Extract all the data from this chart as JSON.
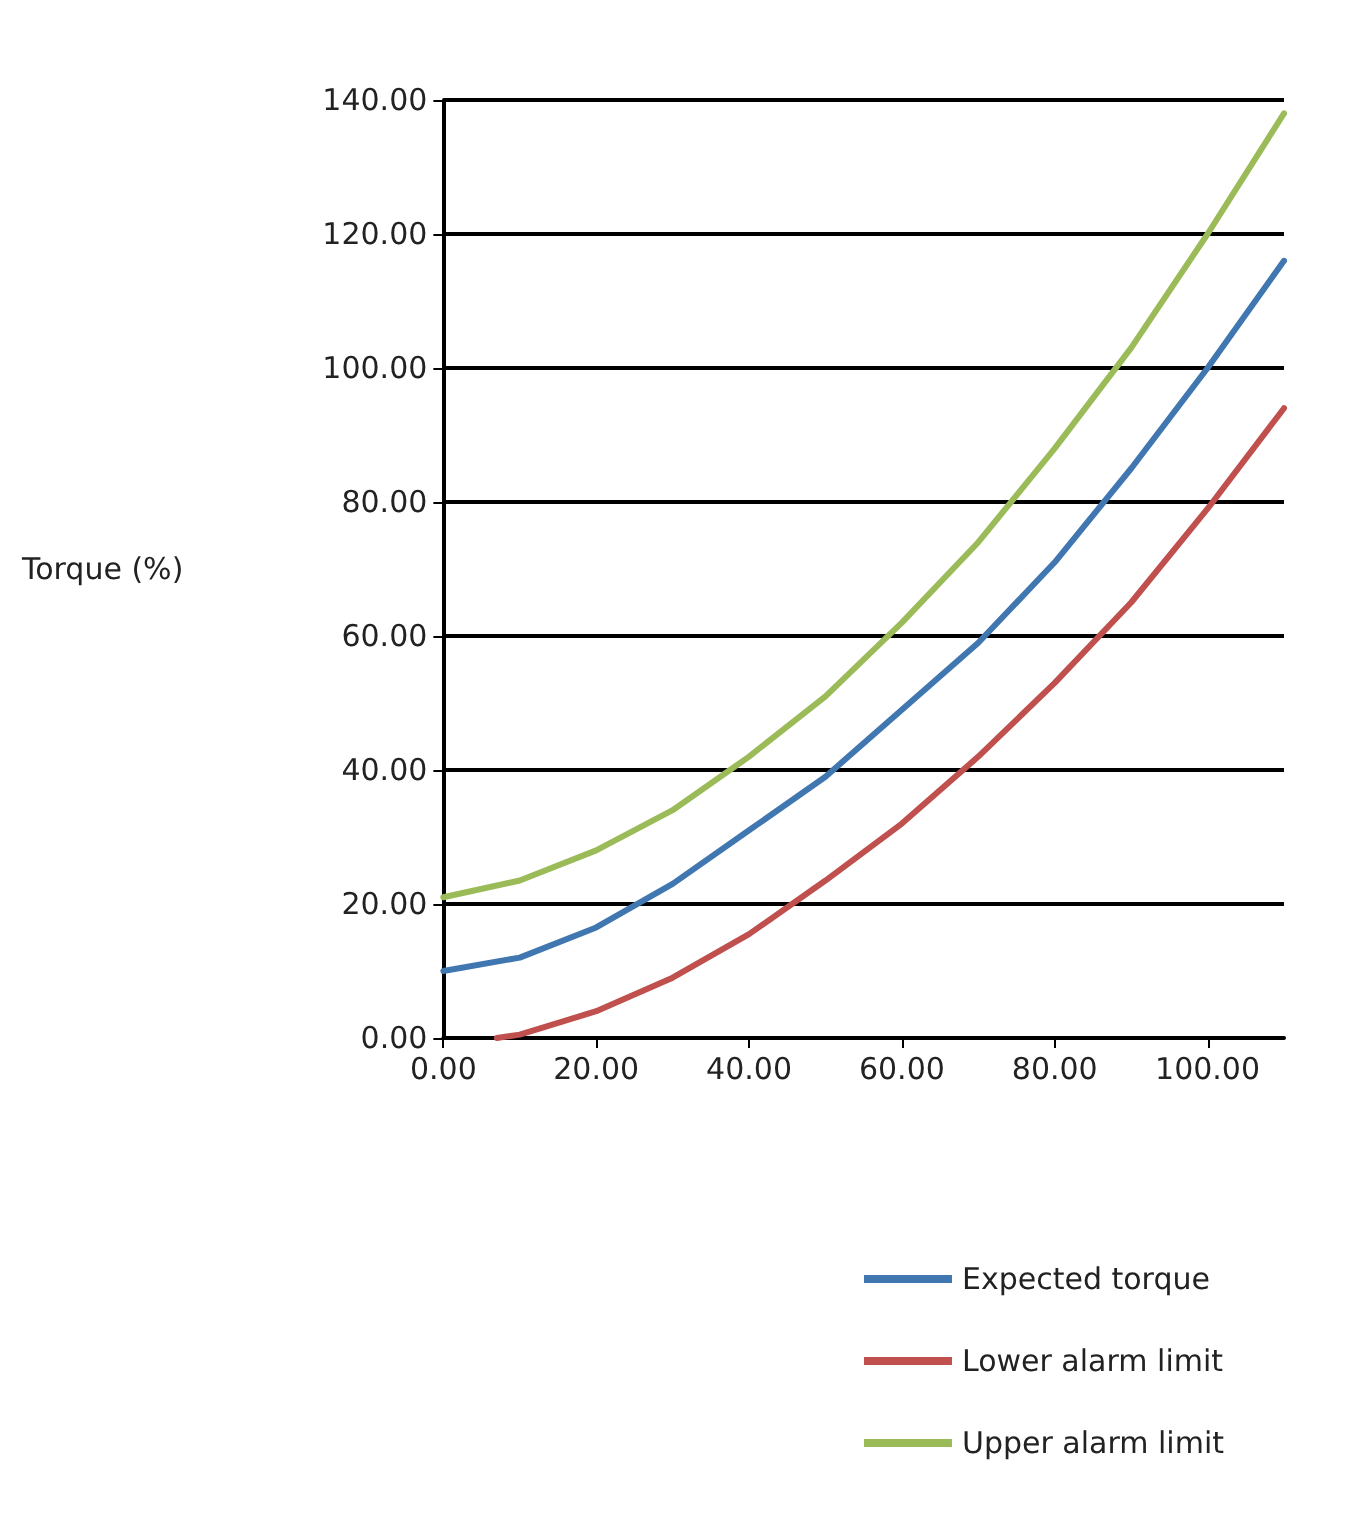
{
  "chart_data": {
    "type": "line",
    "ylabel": "Torque (%)",
    "xlim": [
      0,
      110
    ],
    "xticks": [
      {
        "value": 0,
        "label": "0.00"
      },
      {
        "value": 20,
        "label": "20.00"
      },
      {
        "value": 40,
        "label": "40.00"
      },
      {
        "value": 60,
        "label": "60.00"
      },
      {
        "value": 80,
        "label": "80.00"
      },
      {
        "value": 100,
        "label": "100.00"
      }
    ],
    "ylim": [
      0,
      140
    ],
    "yticks": [
      {
        "value": 0,
        "label": "0.00"
      },
      {
        "value": 20,
        "label": "20.00"
      },
      {
        "value": 40,
        "label": "40.00"
      },
      {
        "value": 60,
        "label": "60.00"
      },
      {
        "value": 80,
        "label": "80.00"
      },
      {
        "value": 100,
        "label": "100.00"
      },
      {
        "value": 120,
        "label": "120.00"
      },
      {
        "value": 140,
        "label": "140.00"
      }
    ],
    "grid": "y",
    "legend": "bottom right",
    "marker": "none",
    "line_style": "solid",
    "series": [
      {
        "name": "Expected torque",
        "color": "#4077b0",
        "x": [
          0,
          10,
          20,
          30,
          40,
          50,
          60,
          70,
          80,
          90,
          100,
          110
        ],
        "values": [
          10,
          12,
          16.5,
          23,
          31,
          39,
          49,
          59,
          71,
          85,
          100,
          116
        ]
      },
      {
        "name": "Lower alarm limit",
        "color": "#c0504d",
        "x": [
          7,
          10,
          20,
          30,
          40,
          50,
          60,
          70,
          80,
          90,
          100,
          110
        ],
        "values": [
          0,
          0.5,
          4,
          9,
          15.5,
          23.5,
          32,
          42,
          53,
          65,
          79,
          94
        ]
      },
      {
        "name": "Upper alarm limit",
        "color": "#9bbb59",
        "x": [
          0,
          10,
          20,
          30,
          40,
          50,
          60,
          70,
          80,
          90,
          100,
          110
        ],
        "values": [
          21,
          23.5,
          28,
          34,
          42,
          51,
          62,
          74,
          88,
          103,
          120,
          138
        ]
      }
    ]
  }
}
